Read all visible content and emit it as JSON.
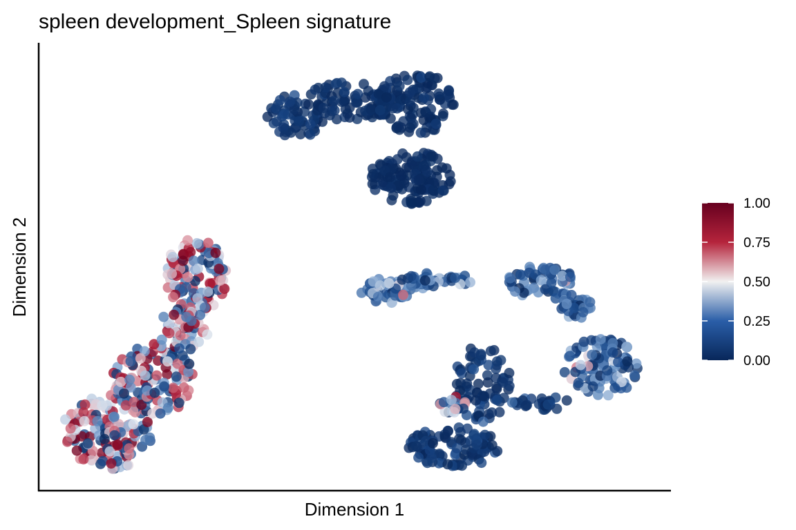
{
  "chart_data": {
    "type": "scatter",
    "title": "spleen development_Spleen signature",
    "xlabel": "Dimension 1",
    "ylabel": "Dimension 2",
    "xlim": [
      0,
      100
    ],
    "ylim": [
      0,
      100
    ],
    "grid": false,
    "legend": {
      "placement": "right",
      "kind": "colorbar",
      "ticks": [
        "0.00",
        "0.25",
        "0.50",
        "0.75",
        "1.00"
      ],
      "range": [
        0,
        1
      ],
      "colors": [
        "#08275a",
        "#2a5ea8",
        "#f1f1f1",
        "#b5243c",
        "#67001f"
      ]
    },
    "point_color_scale": [
      "#08275a",
      "#1c4c8e",
      "#6f98c9",
      "#e2e6ee",
      "#d98b99",
      "#a9122e",
      "#6b001f"
    ],
    "clusters": [
      {
        "cx": 10.5,
        "cy": 12.5,
        "rx": 7.5,
        "ry": 8.5,
        "n": 150,
        "mean": 0.55,
        "sd": 0.32
      },
      {
        "cx": 17.5,
        "cy": 24.5,
        "rx": 7,
        "ry": 8,
        "n": 130,
        "mean": 0.55,
        "sd": 0.32
      },
      {
        "cx": 24.5,
        "cy": 48.0,
        "rx": 5,
        "ry": 8.5,
        "n": 120,
        "mean": 0.62,
        "sd": 0.3
      },
      {
        "cx": 22.5,
        "cy": 36.0,
        "rx": 4,
        "ry": 5,
        "n": 50,
        "mean": 0.58,
        "sd": 0.3
      },
      {
        "cx": 40.5,
        "cy": 84.5,
        "rx": 4.5,
        "ry": 5,
        "n": 60,
        "mean": 0.06,
        "sd": 0.05
      },
      {
        "cx": 50.0,
        "cy": 88.0,
        "rx": 8,
        "ry": 4.5,
        "n": 100,
        "mean": 0.03,
        "sd": 0.03
      },
      {
        "cx": 60.0,
        "cy": 87.5,
        "rx": 6.5,
        "ry": 7,
        "n": 100,
        "mean": 0.03,
        "sd": 0.03
      },
      {
        "cx": 59.0,
        "cy": 70.5,
        "rx": 6.5,
        "ry": 6,
        "n": 130,
        "mean": 0.02,
        "sd": 0.02
      },
      {
        "cx": 55.0,
        "cy": 44.5,
        "rx": 4,
        "ry": 3,
        "n": 50,
        "mean": 0.27,
        "sd": 0.15
      },
      {
        "cx": 63.5,
        "cy": 47.0,
        "rx": 6,
        "ry": 2,
        "n": 45,
        "mean": 0.24,
        "sd": 0.14
      },
      {
        "cx": 80.0,
        "cy": 46.5,
        "rx": 5.5,
        "ry": 4,
        "n": 60,
        "mean": 0.22,
        "sd": 0.14
      },
      {
        "cx": 85.5,
        "cy": 41.0,
        "rx": 2.5,
        "ry": 3,
        "n": 25,
        "mean": 0.2,
        "sd": 0.12
      },
      {
        "cx": 89.5,
        "cy": 27.0,
        "rx": 6,
        "ry": 7,
        "n": 110,
        "mean": 0.22,
        "sd": 0.16
      },
      {
        "cx": 70.5,
        "cy": 23.5,
        "rx": 4.5,
        "ry": 9,
        "n": 80,
        "mean": 0.05,
        "sd": 0.06
      },
      {
        "cx": 66.0,
        "cy": 9.0,
        "rx": 7.5,
        "ry": 4.5,
        "n": 100,
        "mean": 0.06,
        "sd": 0.06
      },
      {
        "cx": 80.0,
        "cy": 19.0,
        "rx": 5,
        "ry": 1.5,
        "n": 25,
        "mean": 0.1,
        "sd": 0.07
      },
      {
        "cx": 66.0,
        "cy": 18.5,
        "rx": 2.5,
        "ry": 2.5,
        "n": 20,
        "mean": 0.55,
        "sd": 0.3
      }
    ]
  }
}
